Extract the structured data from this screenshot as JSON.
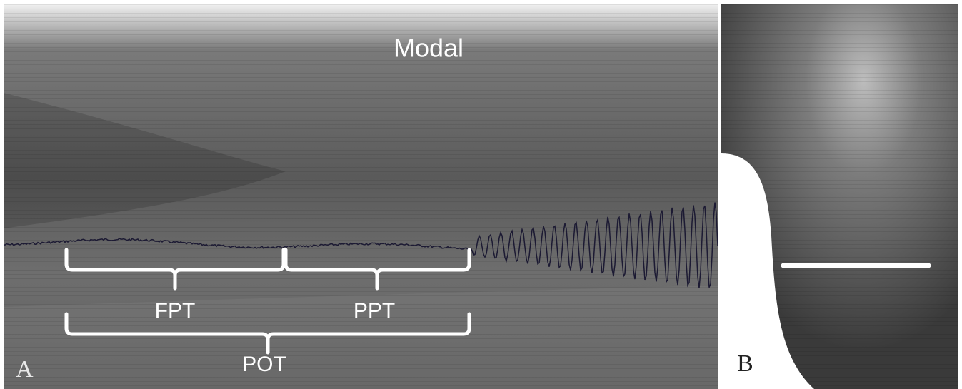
{
  "panel_a": {
    "label": "A",
    "title": "Modal",
    "brackets": [
      "FPT",
      "PPT",
      "POT"
    ]
  },
  "panel_b": {
    "label": "B"
  }
}
